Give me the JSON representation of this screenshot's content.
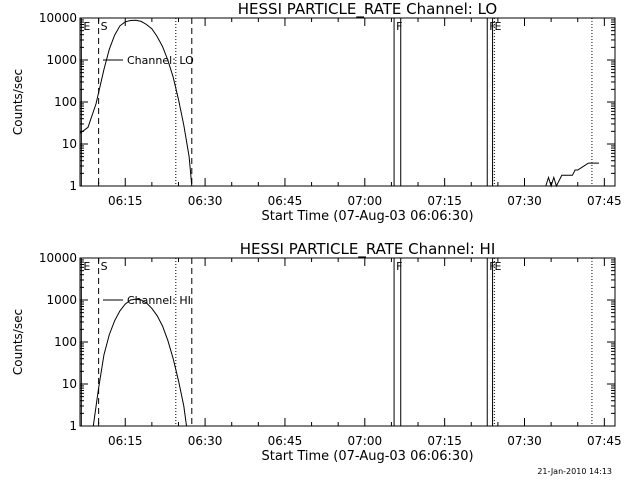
{
  "chart_data": [
    {
      "type": "line",
      "title": "HESSI PARTICLE_RATE Channel: LO",
      "xlabel": "Start Time (07-Aug-03 06:06:30)",
      "ylabel": "Counts/sec",
      "yscale": "log",
      "ylim": [
        1,
        10000
      ],
      "xlim": [
        "06:06:30",
        "07:47:00"
      ],
      "x_tick_labels": [
        "06:15",
        "06:30",
        "06:45",
        "07:00",
        "07:15",
        "07:30",
        "07:45"
      ],
      "y_tick_labels": [
        "1",
        "10",
        "100",
        "1000",
        "10000"
      ],
      "series": [
        {
          "name": "Channel: LO",
          "x": [
            "06:06:30",
            "06:08:00",
            "06:09:30",
            "06:11:00",
            "06:12:00",
            "06:13:00",
            "06:14:00",
            "06:15:00",
            "06:16:00",
            "06:17:00",
            "06:18:00",
            "06:19:00",
            "06:20:00",
            "06:21:00",
            "06:22:00",
            "06:23:00",
            "06:24:00",
            "06:25:00",
            "06:26:00",
            "06:27:00",
            "06:27:30"
          ],
          "values": [
            18,
            25,
            90,
            600,
            1800,
            3900,
            6500,
            8100,
            8700,
            8800,
            8300,
            7000,
            5500,
            3600,
            2100,
            1000,
            390,
            115,
            28,
            5,
            1
          ]
        },
        {
          "name": "",
          "x": [
            "07:34:00",
            "07:34:30",
            "07:35:00",
            "07:35:30",
            "07:36:00",
            "07:37:00",
            "07:38:00",
            "07:39:00",
            "07:39:30",
            "07:40:00",
            "07:41:00",
            "07:42:00",
            "07:43:00",
            "07:44:00"
          ],
          "values": [
            1,
            1.6,
            1,
            1.6,
            1,
            1.8,
            1.8,
            1.8,
            2.4,
            2.4,
            2.9,
            3.5,
            3.5,
            3.5
          ]
        }
      ],
      "markers": [
        {
          "label": "E",
          "time": "06:06:45",
          "style": "solid"
        },
        {
          "label": "S",
          "time": "06:10:00",
          "style": "dashed"
        },
        {
          "label": "",
          "time": "06:24:30",
          "style": "dotted"
        },
        {
          "label": "",
          "time": "06:27:30",
          "style": "dashed"
        },
        {
          "label": "F",
          "time": "07:05:30",
          "style": "solid"
        },
        {
          "label": "",
          "time": "07:06:45",
          "style": "solid"
        },
        {
          "label": "F",
          "time": "07:23:00",
          "style": "solid"
        },
        {
          "label": "E",
          "time": "07:24:00",
          "style": "solid"
        },
        {
          "label": "",
          "time": "07:24:20",
          "style": "dotted"
        },
        {
          "label": "",
          "time": "07:42:40",
          "style": "dotted"
        }
      ],
      "grid": false,
      "legend": "upper-left"
    },
    {
      "type": "line",
      "title": "HESSI PARTICLE_RATE Channel: HI",
      "xlabel": "Start Time (07-Aug-03 06:06:30)",
      "ylabel": "Counts/sec",
      "yscale": "log",
      "ylim": [
        1,
        10000
      ],
      "xlim": [
        "06:06:30",
        "07:47:00"
      ],
      "x_tick_labels": [
        "06:15",
        "06:30",
        "06:45",
        "07:00",
        "07:15",
        "07:30",
        "07:45"
      ],
      "y_tick_labels": [
        "1",
        "10",
        "100",
        "1000",
        "10000"
      ],
      "series": [
        {
          "name": "Channel: HI",
          "x": [
            "06:09:00",
            "06:10:00",
            "06:11:00",
            "06:12:00",
            "06:13:00",
            "06:14:00",
            "06:15:00",
            "06:16:00",
            "06:17:00",
            "06:18:00",
            "06:19:00",
            "06:20:00",
            "06:21:00",
            "06:22:00",
            "06:23:00",
            "06:24:00",
            "06:25:00",
            "06:26:00",
            "06:26:30"
          ],
          "values": [
            1,
            8,
            50,
            150,
            320,
            550,
            800,
            1000,
            1050,
            1000,
            850,
            630,
            420,
            240,
            110,
            40,
            12,
            3,
            1
          ]
        }
      ],
      "markers": [
        {
          "label": "E",
          "time": "06:06:45",
          "style": "solid"
        },
        {
          "label": "S",
          "time": "06:10:00",
          "style": "dashed"
        },
        {
          "label": "",
          "time": "06:24:30",
          "style": "dotted"
        },
        {
          "label": "",
          "time": "06:27:30",
          "style": "dashed"
        },
        {
          "label": "F",
          "time": "07:05:30",
          "style": "solid"
        },
        {
          "label": "",
          "time": "07:06:45",
          "style": "solid"
        },
        {
          "label": "F",
          "time": "07:23:00",
          "style": "solid"
        },
        {
          "label": "E",
          "time": "07:24:00",
          "style": "solid"
        },
        {
          "label": "",
          "time": "07:24:20",
          "style": "dotted"
        },
        {
          "label": "",
          "time": "07:42:40",
          "style": "dotted"
        }
      ],
      "grid": false,
      "legend": "upper-left"
    }
  ],
  "footer": {
    "date": "21-Jan-2010 14:13"
  }
}
